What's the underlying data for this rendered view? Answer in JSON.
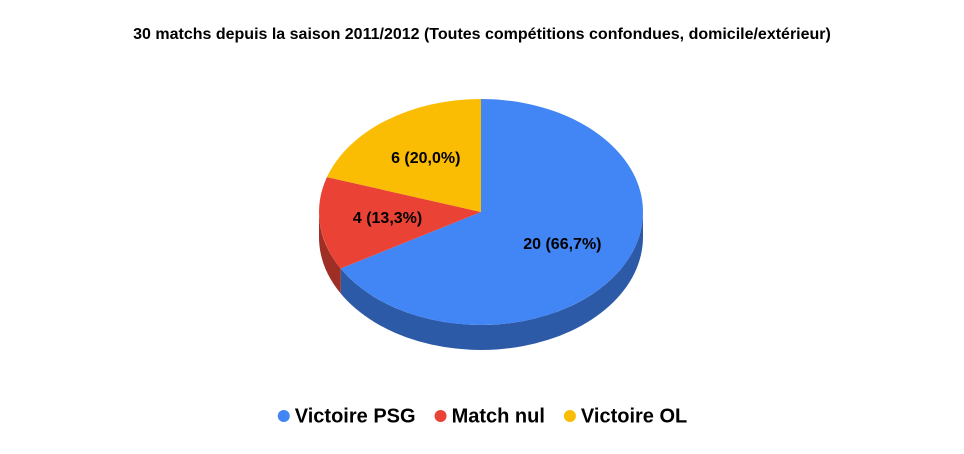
{
  "chart_data": {
    "type": "pie",
    "title": "30 matchs depuis la saison 2011/2012 (Toutes compétitions confondues, domicile/extérieur)",
    "categories": [
      "Victoire PSG",
      "Match nul",
      "Victoire OL"
    ],
    "values": [
      20,
      4,
      6
    ],
    "value_labels": [
      "20 (66,7%)",
      "4 (13,3%)",
      "6 (20,0%)"
    ],
    "colors": [
      "#4285f4",
      "#ea4335",
      "#fbbc04"
    ],
    "legend": "bottom"
  }
}
